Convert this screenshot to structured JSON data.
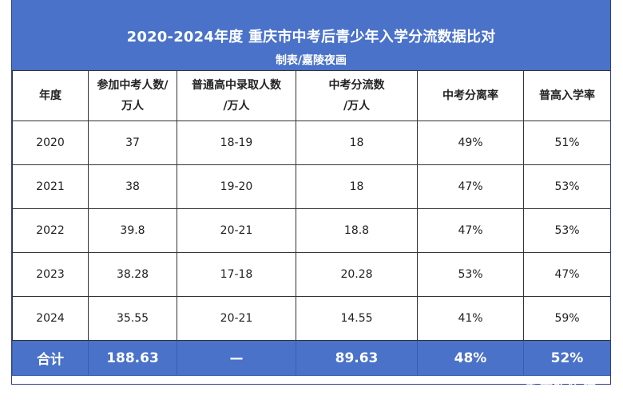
{
  "header": {
    "title": "2020-2024年度 重庆市中考后青少年入学分流数据比对",
    "subtitle": "制表/嘉陵夜画"
  },
  "columns": [
    {
      "line1": "年度",
      "line2": ""
    },
    {
      "line1": "参加中考人数/",
      "line2": "万人"
    },
    {
      "line1": "普通高中录取人数",
      "line2": "/万人"
    },
    {
      "line1": "中考分流数",
      "line2": "/万人"
    },
    {
      "line1": "中考分离率",
      "line2": ""
    },
    {
      "line1": "普高入学率",
      "line2": ""
    }
  ],
  "rows": [
    [
      "2020",
      "37",
      "18-19",
      "18",
      "49%",
      "51%"
    ],
    [
      "2021",
      "38",
      "19-20",
      "18",
      "47%",
      "53%"
    ],
    [
      "2022",
      "39.8",
      "20-21",
      "18.8",
      "47%",
      "53%"
    ],
    [
      "2023",
      "38.28",
      "17-18",
      "20.28",
      "53%",
      "47%"
    ],
    [
      "2024",
      "35.55",
      "20-21",
      "14.55",
      "41%",
      "59%"
    ]
  ],
  "total": [
    "合计",
    "188.63",
    "—",
    "89.63",
    "48%",
    "52%"
  ],
  "watermark": "重庆购物狂",
  "colors": {
    "header_bg": "#4a72c9",
    "header_text": "#ffffff",
    "grid": "#333333"
  }
}
